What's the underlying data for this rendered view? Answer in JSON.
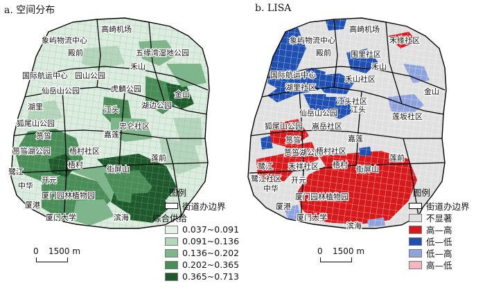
{
  "panel_a": {
    "title": "a. 空间分布",
    "labels": [
      "高崎机场",
      "象屿物流中心",
      "殿前",
      "五缘湾湿地公园",
      "禾山",
      "国际航运中心",
      "园山公园",
      "仙岳山公园",
      "虎麟公园",
      "金山",
      "湖里",
      "湖边公园",
      "狐尾山公园",
      "江头",
      "忠仑社区",
      "筼筜",
      "嘉莲",
      "筼筜湖公园",
      "梧村社区",
      "莲前",
      "鹭江",
      "梧村",
      "中华",
      "开元",
      "街屏山",
      "厦门园林植物园",
      "厦港",
      "厦门大学",
      "滨海"
    ],
    "legend": {
      "title": "图例",
      "boundary": "街道办边界",
      "subtitle": "综合供给",
      "classes": [
        {
          "label": "0.037~0.091",
          "color": "#e6f2e8"
        },
        {
          "label": "0.091~0.136",
          "color": "#b5d6bc"
        },
        {
          "label": "0.136~0.202",
          "color": "#7fb58b"
        },
        {
          "label": "0.202~0.365",
          "color": "#4a8d58"
        },
        {
          "label": "0.365~0.713",
          "color": "#1f5a2d"
        }
      ]
    },
    "scale": {
      "zero": "0",
      "distance": "1500 m"
    }
  },
  "panel_b": {
    "title": "b. LISA",
    "labels": [
      "高崎机场",
      "象屿物流中心",
      "殿前",
      "禾缘社区",
      "围里社区",
      "禾山",
      "国际航运中心",
      "禾山社区",
      "湖里社区",
      "金山",
      "江头社区",
      "仙岳山公园",
      "江头",
      "狐尾山公园",
      "嵩岳社区",
      "莲坂社区",
      "嘉莲",
      "筼筜",
      "筼筜湖公园",
      "梧村社区",
      "莲前",
      "鹭江",
      "禾祥社区",
      "梧村",
      "鹭江社区",
      "街屏山",
      "中华",
      "开元",
      "厦门园林植物园",
      "厦港",
      "厦门大学",
      "滨海"
    ],
    "legend": {
      "title": "图例",
      "boundary": "街道办边界",
      "classes": [
        {
          "label": "不显著",
          "color": "#e0e0e0"
        },
        {
          "label": "高—高",
          "color": "#d7191c"
        },
        {
          "label": "低—低",
          "color": "#1f4fb0"
        },
        {
          "label": "低—高",
          "color": "#8ea2dd"
        },
        {
          "label": "高—低",
          "color": "#f4b6c2"
        }
      ]
    },
    "scale": {
      "zero": "0",
      "distance": "1500 m"
    }
  }
}
